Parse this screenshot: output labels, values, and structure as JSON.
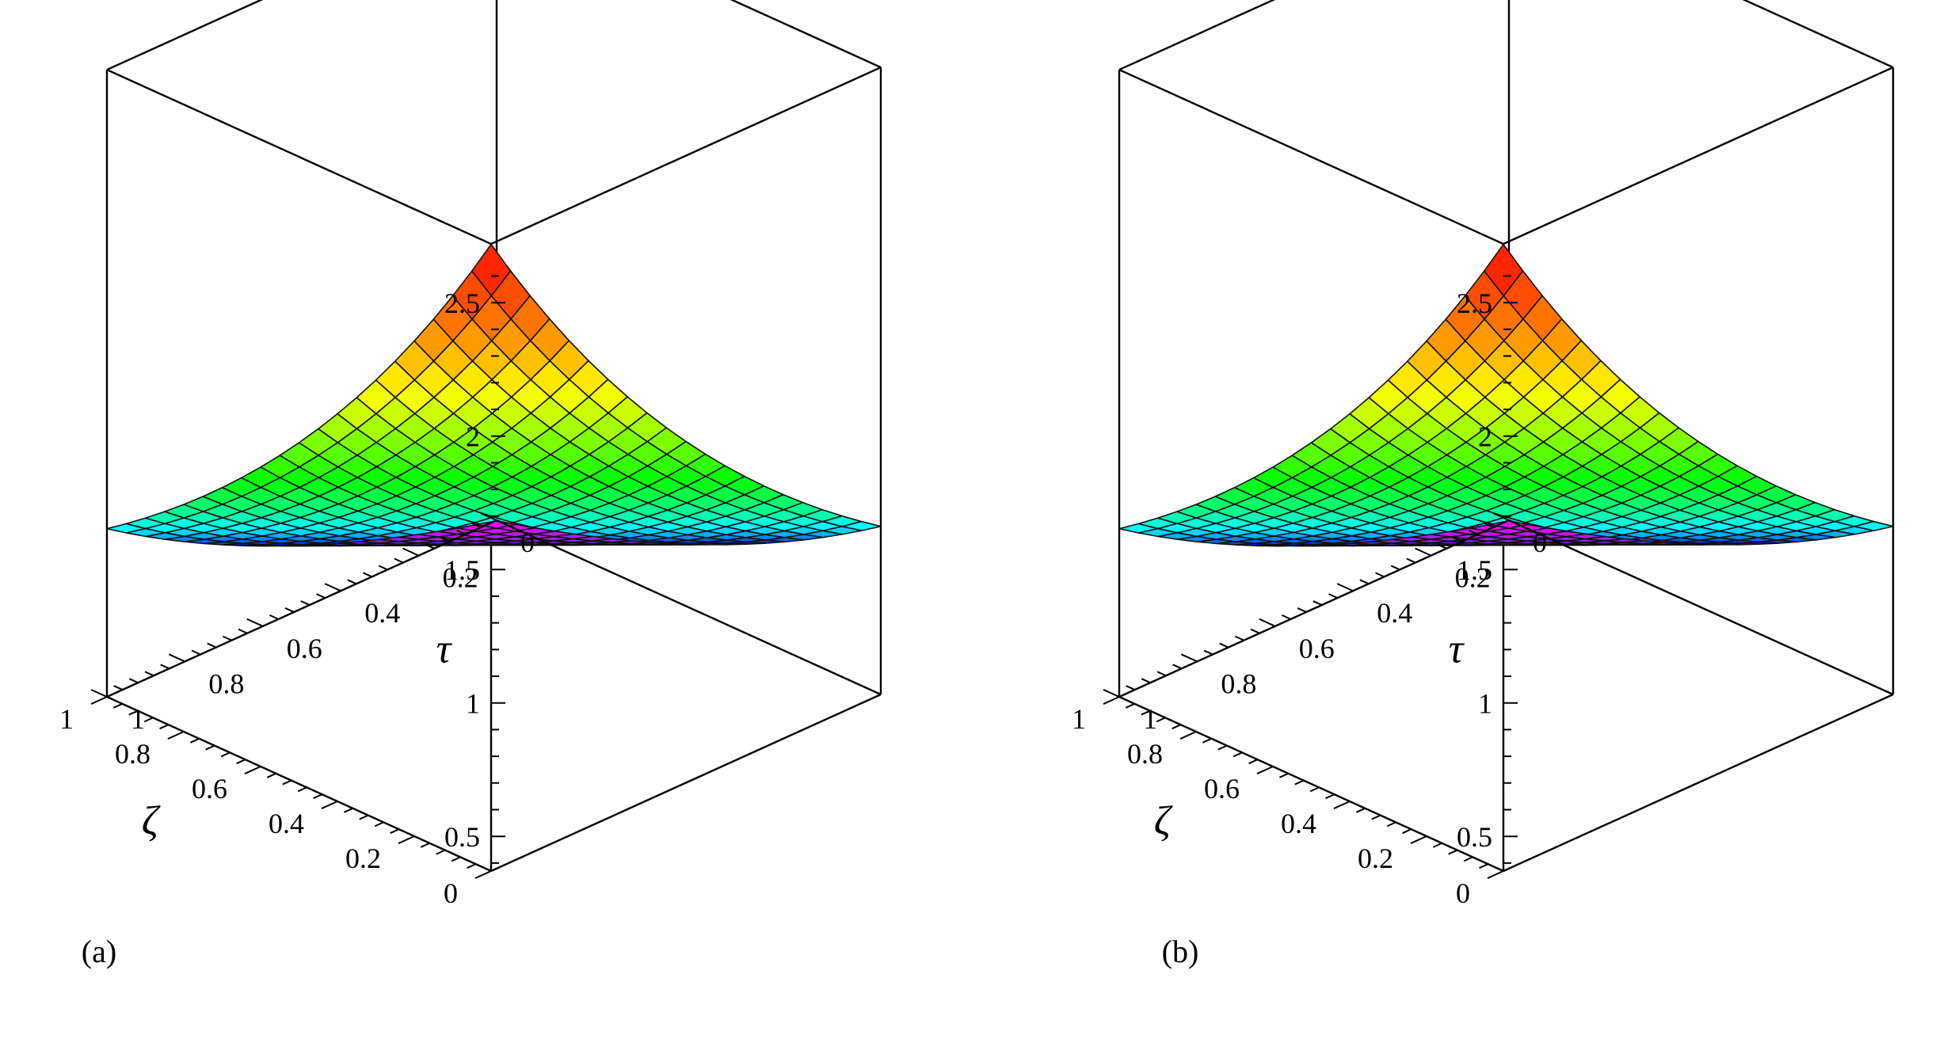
{
  "figure": {
    "panel_labels": [
      "(a)",
      "(b)"
    ]
  },
  "chart_data": [
    {
      "type": "surface3d",
      "panel_label": "(a)",
      "xlabel": "ζ",
      "ylabel": "τ",
      "zlabel": "",
      "x_ticks": [
        "0",
        "0.2",
        "0.4",
        "0.6",
        "0.8",
        "1"
      ],
      "y_ticks": [
        "0",
        "0.2",
        "0.4",
        "0.6",
        "0.8",
        "1"
      ],
      "z_ticks": [
        "0.5",
        "1",
        "1.5",
        "2",
        "2.5"
      ],
      "xlim": [
        0,
        1
      ],
      "ylim": [
        0,
        1
      ],
      "zlim": [
        0.37,
        2.72
      ],
      "grid_size": 21,
      "surface_corners": {
        "z_at_x0_y0": 2.72,
        "z_at_x1_y0": 1.0,
        "z_at_x0_y1": 1.0,
        "z_at_x1_y1": 0.37
      },
      "colormap": [
        "#ff00ff",
        "#8a2be2",
        "#0000ff",
        "#00ffff",
        "#00ff00",
        "#ffff00",
        "#ff0000"
      ]
    },
    {
      "type": "surface3d",
      "panel_label": "(b)",
      "xlabel": "ζ",
      "ylabel": "τ",
      "zlabel": "",
      "x_ticks": [
        "0",
        "0.2",
        "0.4",
        "0.6",
        "0.8",
        "1"
      ],
      "y_ticks": [
        "0",
        "0.2",
        "0.4",
        "0.6",
        "0.8",
        "1"
      ],
      "z_ticks": [
        "0.5",
        "1",
        "1.5",
        "2",
        "2.5"
      ],
      "xlim": [
        0,
        1
      ],
      "ylim": [
        0,
        1
      ],
      "zlim": [
        0.37,
        2.72
      ],
      "grid_size": 21,
      "surface_corners": {
        "z_at_x0_y0": 2.72,
        "z_at_x1_y0": 1.0,
        "z_at_x0_y1": 1.0,
        "z_at_x1_y1": 0.37
      },
      "colormap": [
        "#ff00ff",
        "#8a2be2",
        "#0000ff",
        "#00ffff",
        "#00ff00",
        "#ffff00",
        "#ff0000"
      ]
    }
  ]
}
